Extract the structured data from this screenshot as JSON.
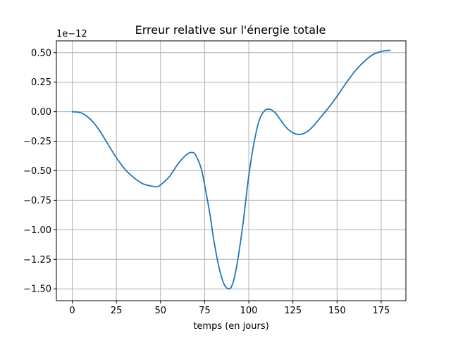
{
  "chart_data": {
    "type": "line",
    "title": "Erreur relative sur l'énergie totale",
    "xlabel": "temps (en jours)",
    "ylabel": "",
    "offset_text": "1e−12",
    "xlim": [
      -9,
      189
    ],
    "ylim": [
      -1.6,
      0.6
    ],
    "y_scale_factor": 1e-12,
    "grid": true,
    "line_color": "#1f77b4",
    "x_ticks": [
      0,
      25,
      50,
      75,
      100,
      125,
      150,
      175
    ],
    "x_tick_labels": [
      "0",
      "25",
      "50",
      "75",
      "100",
      "125",
      "150",
      "175"
    ],
    "y_ticks": [
      0.5,
      0.25,
      0.0,
      -0.25,
      -0.5,
      -0.75,
      -1.0,
      -1.25,
      -1.5
    ],
    "y_tick_labels": [
      "0.50",
      "0.25",
      "0.00",
      "−0.25",
      "−0.50",
      "−0.75",
      "−1.00",
      "−1.25",
      "−1.50"
    ],
    "series": [
      {
        "x": [
          0,
          5,
          10,
          15,
          20,
          25,
          30,
          35,
          40,
          45,
          48,
          50,
          55,
          60,
          65,
          68,
          70,
          73,
          75,
          78,
          80,
          83,
          86,
          89,
          91,
          93,
          96,
          98,
          100,
          103,
          106,
          109,
          112,
          115,
          118,
          121,
          124,
          127,
          130,
          133,
          136,
          140,
          145,
          150,
          155,
          160,
          165,
          170,
          175,
          180
        ],
        "y": [
          0.0,
          -0.01,
          -0.06,
          -0.15,
          -0.27,
          -0.39,
          -0.49,
          -0.56,
          -0.61,
          -0.63,
          -0.635,
          -0.62,
          -0.55,
          -0.44,
          -0.36,
          -0.345,
          -0.37,
          -0.48,
          -0.62,
          -0.87,
          -1.07,
          -1.31,
          -1.46,
          -1.5,
          -1.45,
          -1.32,
          -1.03,
          -0.79,
          -0.54,
          -0.26,
          -0.07,
          0.01,
          0.02,
          -0.01,
          -0.07,
          -0.13,
          -0.17,
          -0.19,
          -0.19,
          -0.17,
          -0.13,
          -0.06,
          0.03,
          0.13,
          0.24,
          0.34,
          0.42,
          0.48,
          0.51,
          0.52
        ]
      }
    ]
  }
}
